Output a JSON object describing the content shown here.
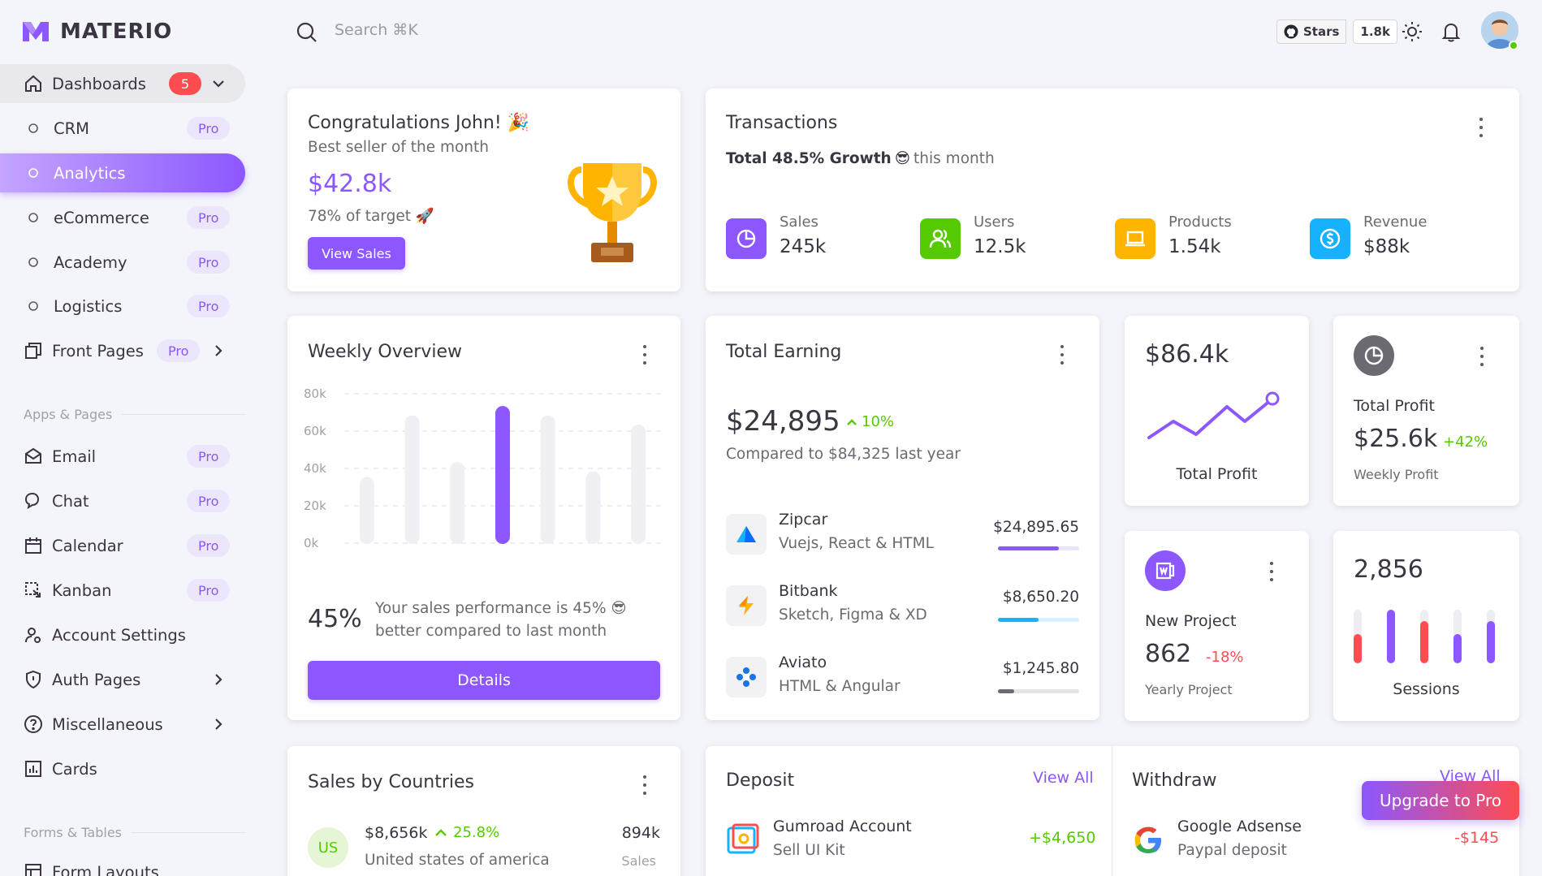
{
  "app": {
    "name": "MATERIO"
  },
  "sidebar": {
    "dashboards": {
      "label": "Dashboards",
      "badge": "5"
    },
    "dash_items": [
      {
        "label": "CRM",
        "pro": "Pro"
      },
      {
        "label": "Analytics"
      },
      {
        "label": "eCommerce",
        "pro": "Pro"
      },
      {
        "label": "Academy",
        "pro": "Pro"
      },
      {
        "label": "Logistics",
        "pro": "Pro"
      }
    ],
    "front_pages": {
      "label": "Front Pages",
      "pro": "Pro"
    },
    "section_apps": "Apps & Pages",
    "apps": [
      {
        "label": "Email",
        "pro": "Pro"
      },
      {
        "label": "Chat",
        "pro": "Pro"
      },
      {
        "label": "Calendar",
        "pro": "Pro"
      },
      {
        "label": "Kanban",
        "pro": "Pro"
      },
      {
        "label": "Account Settings"
      },
      {
        "label": "Auth Pages"
      },
      {
        "label": "Miscellaneous"
      },
      {
        "label": "Cards"
      }
    ],
    "section_forms": "Forms & Tables",
    "form_layouts": "Form Layouts"
  },
  "topbar": {
    "search_placeholder": "Search ⌘K",
    "github_label": "Stars",
    "github_count": "1.8k"
  },
  "congrats": {
    "title": "Congratulations John! 🎉",
    "subtitle": "Best seller of the month",
    "amount": "$42.8k",
    "target": "78% of target 🚀",
    "button": "View Sales"
  },
  "transactions": {
    "title": "Transactions",
    "growth_bold": "Total 48.5% Growth",
    "growth_emoji": "😎",
    "growth_rest": "this month",
    "stats": [
      {
        "label": "Sales",
        "value": "245k",
        "color": "#8c57ff"
      },
      {
        "label": "Users",
        "value": "12.5k",
        "color": "#56ca00"
      },
      {
        "label": "Products",
        "value": "1.54k",
        "color": "#ffb400"
      },
      {
        "label": "Revenue",
        "value": "$88k",
        "color": "#16b1ff"
      }
    ]
  },
  "weekly": {
    "title": "Weekly Overview",
    "y_ticks": [
      "80k",
      "60k",
      "40k",
      "20k",
      "0k"
    ],
    "percent": "45%",
    "text_line1": "Your sales performance is 45% 😎",
    "text_line2": "better compared to last month",
    "button": "Details"
  },
  "chart_data": {
    "type": "bar",
    "ylim": [
      0,
      80000
    ],
    "y_ticks": [
      "80k",
      "60k",
      "40k",
      "20k",
      "0k"
    ],
    "values": [
      35000,
      68000,
      43000,
      73000,
      68000,
      38000,
      63000
    ],
    "highlight_index": 3
  },
  "earning": {
    "title": "Total Earning",
    "amount": "$24,895",
    "growth": "10%",
    "compare": "Compared to $84,325 last year",
    "items": [
      {
        "name": "Zipcar",
        "sub": "Vuejs, React & HTML",
        "amount": "$24,895.65",
        "progress": 0.75,
        "color": "#8c57ff"
      },
      {
        "name": "Bitbank",
        "sub": "Sketch, Figma & XD",
        "amount": "$8,650.20",
        "progress": 0.5,
        "color": "#16b1ff"
      },
      {
        "name": "Aviato",
        "sub": "HTML & Angular",
        "amount": "$1,245.80",
        "progress": 0.2,
        "color": "#6c6a71"
      }
    ]
  },
  "profit_line": {
    "value": "$86.4k",
    "label": "Total Profit"
  },
  "profit_weekly": {
    "label": "Total Profit",
    "value": "$25.6k",
    "growth": "+42%",
    "sub": "Weekly Profit"
  },
  "new_project": {
    "label": "New Project",
    "value": "862",
    "growth": "-18%",
    "sub": "Yearly Project"
  },
  "sessions": {
    "value": "2,856",
    "label": "Sessions"
  },
  "countries": {
    "title": "Sales by Countries",
    "rows": [
      {
        "code": "US",
        "amount": "$8,656k",
        "growth": "25.8%",
        "country": "United states of america",
        "sales": "894k",
        "sales_label": "Sales"
      }
    ]
  },
  "deposit": {
    "title": "Deposit",
    "view_all": "View All",
    "rows": [
      {
        "name": "Gumroad Account",
        "sub": "Sell UI Kit",
        "amount": "+$4,650"
      }
    ]
  },
  "withdraw": {
    "title": "Withdraw",
    "view_all": "View All",
    "rows": [
      {
        "name": "Google Adsense",
        "sub": "Paypal deposit",
        "amount": "-$145"
      }
    ]
  },
  "upgrade": {
    "label": "Upgrade to Pro"
  }
}
